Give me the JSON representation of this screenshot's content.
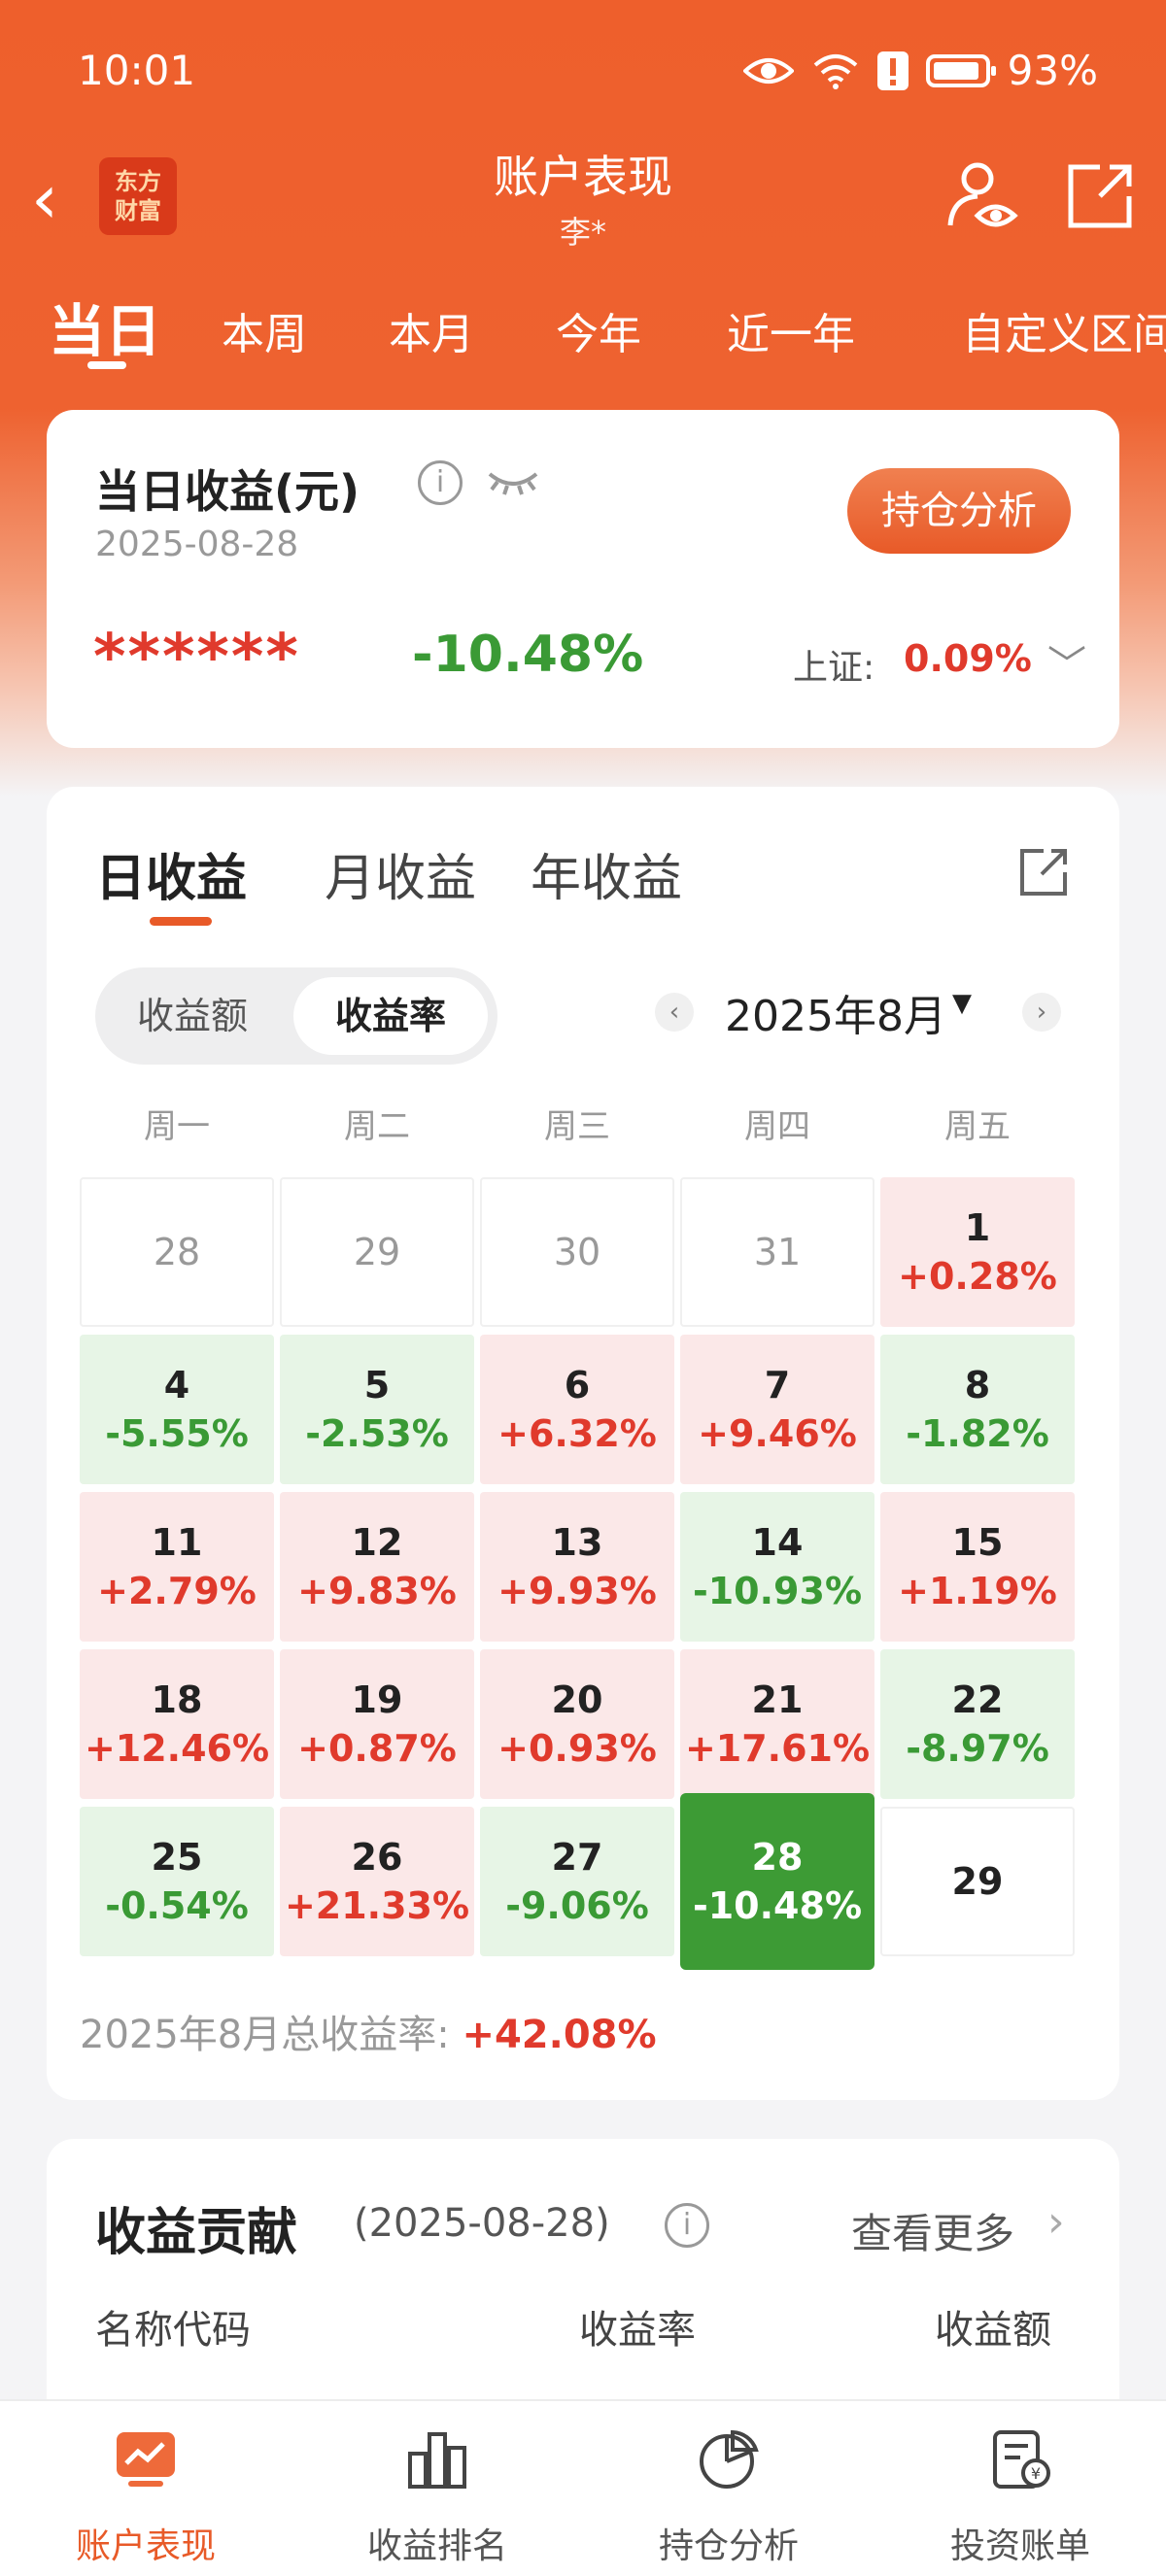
{
  "status_bar": {
    "time": "10:01",
    "battery": "93%"
  },
  "nav": {
    "logo_text": "东方财富",
    "title": "账户表现",
    "subtitle": "李*"
  },
  "period_tabs": [
    "当日",
    "本周",
    "本月",
    "今年",
    "近一年",
    "自定义区间"
  ],
  "summary": {
    "title": "当日收益(元)",
    "date": "2025-08-28",
    "button": "持仓分析",
    "masked_amount": "******",
    "pct": "-10.48%",
    "index_label": "上证:",
    "index_value": "0.09%"
  },
  "calendar": {
    "tabs": [
      "日收益",
      "月收益",
      "年收益"
    ],
    "toggle": [
      "收益额",
      "收益率"
    ],
    "month": "2025年8月",
    "weekdays": [
      "周一",
      "周二",
      "周三",
      "周四",
      "周五"
    ],
    "rows": [
      [
        {
          "day": "28",
          "pct": "",
          "type": "outside"
        },
        {
          "day": "29",
          "pct": "",
          "type": "outside"
        },
        {
          "day": "30",
          "pct": "",
          "type": "outside"
        },
        {
          "day": "31",
          "pct": "",
          "type": "outside"
        },
        {
          "day": "1",
          "pct": "+0.28%",
          "type": "up"
        }
      ],
      [
        {
          "day": "4",
          "pct": "-5.55%",
          "type": "down"
        },
        {
          "day": "5",
          "pct": "-2.53%",
          "type": "down"
        },
        {
          "day": "6",
          "pct": "+6.32%",
          "type": "up"
        },
        {
          "day": "7",
          "pct": "+9.46%",
          "type": "up"
        },
        {
          "day": "8",
          "pct": "-1.82%",
          "type": "down"
        }
      ],
      [
        {
          "day": "11",
          "pct": "+2.79%",
          "type": "up"
        },
        {
          "day": "12",
          "pct": "+9.83%",
          "type": "up"
        },
        {
          "day": "13",
          "pct": "+9.93%",
          "type": "up"
        },
        {
          "day": "14",
          "pct": "-10.93%",
          "type": "down"
        },
        {
          "day": "15",
          "pct": "+1.19%",
          "type": "up"
        }
      ],
      [
        {
          "day": "18",
          "pct": "+12.46%",
          "type": "up"
        },
        {
          "day": "19",
          "pct": "+0.87%",
          "type": "up"
        },
        {
          "day": "20",
          "pct": "+0.93%",
          "type": "up"
        },
        {
          "day": "21",
          "pct": "+17.61%",
          "type": "up"
        },
        {
          "day": "22",
          "pct": "-8.97%",
          "type": "down"
        }
      ],
      [
        {
          "day": "25",
          "pct": "-0.54%",
          "type": "down"
        },
        {
          "day": "26",
          "pct": "+21.33%",
          "type": "up"
        },
        {
          "day": "27",
          "pct": "-9.06%",
          "type": "down"
        },
        {
          "day": "28",
          "pct": "-10.48%",
          "type": "selected"
        },
        {
          "day": "29",
          "pct": "",
          "type": "empty"
        }
      ]
    ],
    "total_label": "2025年8月总收益率:",
    "total_value": "+42.08%"
  },
  "contribution": {
    "title": "收益贡献",
    "date": "(2025-08-28)",
    "more": "查看更多",
    "headers": [
      "名称代码",
      "收益率",
      "收益额"
    ]
  },
  "tabbar": [
    {
      "label": "账户表现",
      "icon": "chart-icon",
      "active": true
    },
    {
      "label": "收益排名",
      "icon": "bar-chart-icon",
      "active": false
    },
    {
      "label": "持仓分析",
      "icon": "pie-chart-icon",
      "active": false
    },
    {
      "label": "投资账单",
      "icon": "bill-icon",
      "active": false
    }
  ],
  "colors": {
    "brand": "#ee6230",
    "up": "#e03a2c",
    "down": "#3a9a35"
  }
}
